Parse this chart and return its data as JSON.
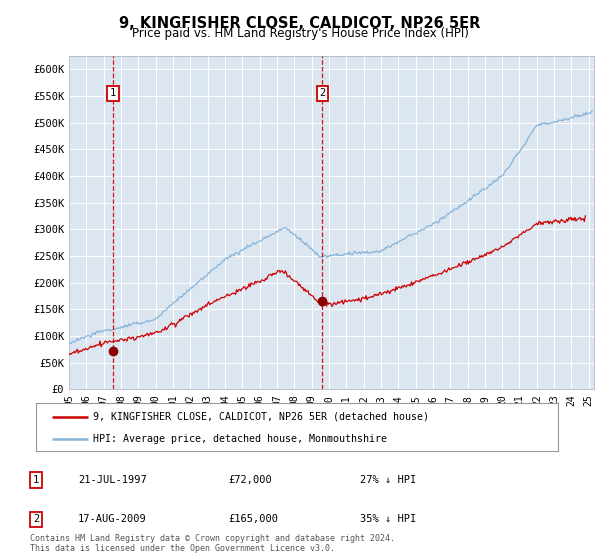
{
  "title": "9, KINGFISHER CLOSE, CALDICOT, NP26 5ER",
  "subtitle": "Price paid vs. HM Land Registry's House Price Index (HPI)",
  "background_color": "#dce6f1",
  "plot_bg_color": "#dce6f1",
  "hpi_color": "#88b4d8",
  "price_color": "#cc0000",
  "ylabel_ticks": [
    "£0",
    "£50K",
    "£100K",
    "£150K",
    "£200K",
    "£250K",
    "£300K",
    "£350K",
    "£400K",
    "£450K",
    "£500K",
    "£550K",
    "£600K"
  ],
  "ylim": [
    0,
    625000
  ],
  "xlim_start": 1995.0,
  "xlim_end": 2025.3,
  "sale1_year": 1997.54,
  "sale1_price": 72000,
  "sale2_year": 2009.63,
  "sale2_price": 165000,
  "legend_property": "9, KINGFISHER CLOSE, CALDICOT, NP26 5ER (detached house)",
  "legend_hpi": "HPI: Average price, detached house, Monmouthshire",
  "footnote": "Contains HM Land Registry data © Crown copyright and database right 2024.\nThis data is licensed under the Open Government Licence v3.0.",
  "table_rows": [
    {
      "num": "1",
      "date": "21-JUL-1997",
      "price": "£72,000",
      "pct": "27% ↓ HPI"
    },
    {
      "num": "2",
      "date": "17-AUG-2009",
      "price": "£165,000",
      "pct": "35% ↓ HPI"
    }
  ],
  "xtick_labels": [
    "95",
    "96",
    "97",
    "98",
    "99",
    "00",
    "01",
    "02",
    "03",
    "04",
    "05",
    "06",
    "07",
    "08",
    "09",
    "10",
    "11",
    "12",
    "13",
    "14",
    "15",
    "16",
    "17",
    "18",
    "19",
    "20",
    "21",
    "22",
    "23",
    "24",
    "25"
  ]
}
